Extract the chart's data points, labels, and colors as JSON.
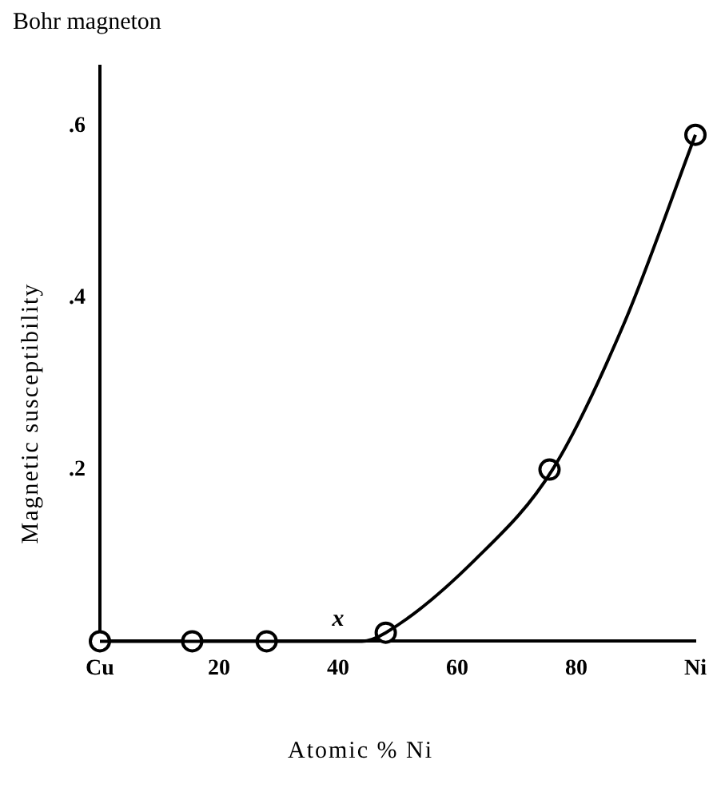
{
  "chart_data": {
    "type": "scatter",
    "title": "Bohr magneton",
    "xlabel": "Atomic % Ni",
    "ylabel": "Magnetic susceptibility",
    "xlim": [
      0,
      100
    ],
    "xticks": [
      {
        "value": 0,
        "label": "Cu"
      },
      20,
      40,
      60,
      80,
      {
        "value": 100,
        "label": "Ni"
      }
    ],
    "ylim": [
      0,
      0.67
    ],
    "yticks": [
      {
        "value": 0.2,
        "label": ".2"
      },
      {
        "value": 0.4,
        "label": ".4"
      },
      {
        "value": 0.6,
        "label": ".6"
      }
    ],
    "grid": false,
    "legend": false,
    "marker": "circle",
    "annotations": [
      "x"
    ],
    "series": [
      {
        "type": "line",
        "color": "#000000",
        "marker": "none",
        "x": [
          0,
          44,
          48,
          63,
          76,
          88,
          100
        ],
        "values": [
          0,
          0,
          0.01,
          0.095,
          0.2,
          0.37,
          0.59
        ]
      },
      {
        "type": "scatter",
        "color": "#000000",
        "x": [
          0,
          15.5,
          28,
          48,
          75.5,
          100
        ],
        "values": [
          0,
          0,
          0,
          0.01,
          0.2,
          0.59
        ]
      }
    ]
  }
}
